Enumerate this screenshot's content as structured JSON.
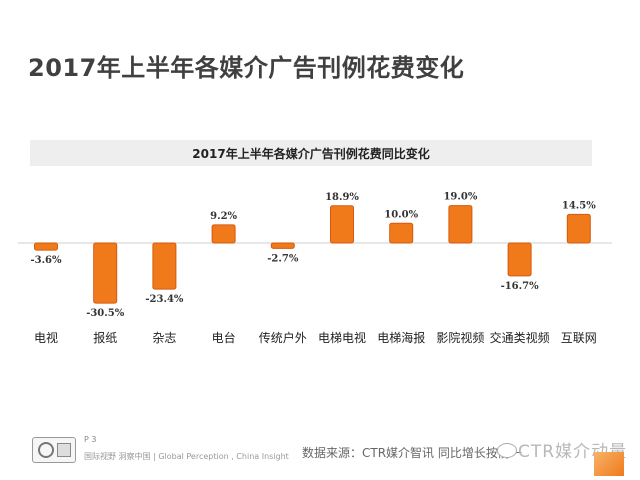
{
  "slide": {
    "title": "2017年上半年各媒介广告刊例花费变化"
  },
  "chart_data": {
    "type": "bar",
    "title": "2017年上半年各媒介广告刊例花费同比变化",
    "categories": [
      "电视",
      "报纸",
      "杂志",
      "电台",
      "传统户外",
      "电梯电视",
      "电梯海报",
      "影院视频",
      "交通类视频",
      "互联网"
    ],
    "values": [
      -3.6,
      -30.5,
      -23.4,
      9.2,
      -2.7,
      18.9,
      10.0,
      19.0,
      -16.7,
      14.5
    ],
    "labels": [
      "-3.6%",
      "-30.5%",
      "-23.4%",
      "9.2%",
      "-2.7%",
      "18.9%",
      "10.0%",
      "19.0%",
      "-16.7%",
      "14.5%"
    ],
    "xlabel": "",
    "ylabel": "",
    "ylim": [
      -30.5,
      19.0
    ],
    "grid": false,
    "bar_color": "#f07a1a",
    "bar_stroke": "#d55a10"
  },
  "footer": {
    "page": "P 3",
    "tagline": "国际视野  洞察中国  |  Global Perception , China  Insight",
    "source": "数据来源：CTR媒介智讯   同比增长按前一",
    "watermark": "CTR媒介动量",
    "brand_color": "#f07a1a"
  }
}
